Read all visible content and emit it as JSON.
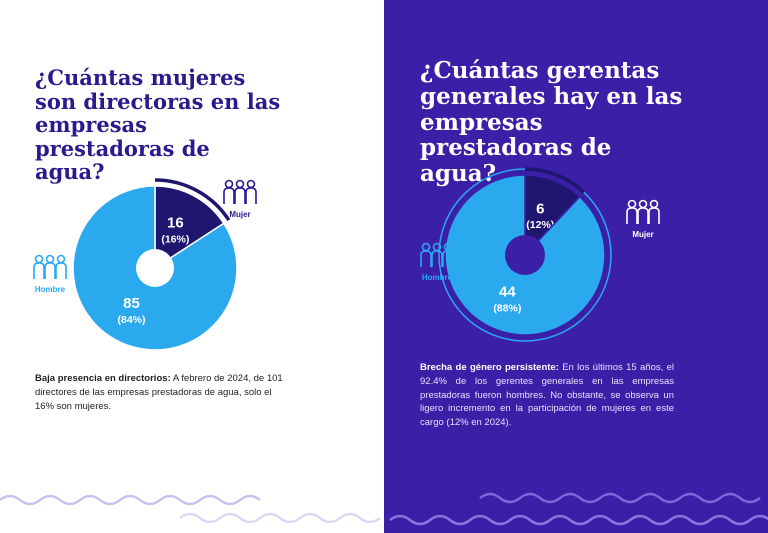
{
  "chart_data": [
    {
      "type": "pie",
      "title": "¿Cuántas mujeres son directoras en las empresas prestadoras de agua?",
      "categories": [
        "Mujer",
        "Hombre"
      ],
      "values": [
        16,
        85
      ],
      "percent_labels": [
        "(16%)",
        "(84%)"
      ],
      "colors": [
        "#1f1670",
        "#2aa9ef"
      ],
      "caption_lead": "Baja presencia en directorios:",
      "caption": "A febrero de 2024, de 101 directores de las empresas prestadoras de agua, solo el 16% son mujeres."
    },
    {
      "type": "pie",
      "title": "¿Cuántas gerentas generales hay en las empresas prestadoras de agua?",
      "categories": [
        "Mujer",
        "Hombre"
      ],
      "values": [
        6,
        44
      ],
      "percent_labels": [
        "(12%)",
        "(88%)"
      ],
      "colors": [
        "#1f1670",
        "#2aa9ef"
      ],
      "caption_lead": "Brecha de género persistente:",
      "caption": "En los últimos 15 años, el 92.4% de los gerentes generales en las empresas prestadoras fueron hombres. No obstante, se observa un ligero incremento en la participación de mujeres en este cargo (12% en 2024)."
    }
  ]
}
